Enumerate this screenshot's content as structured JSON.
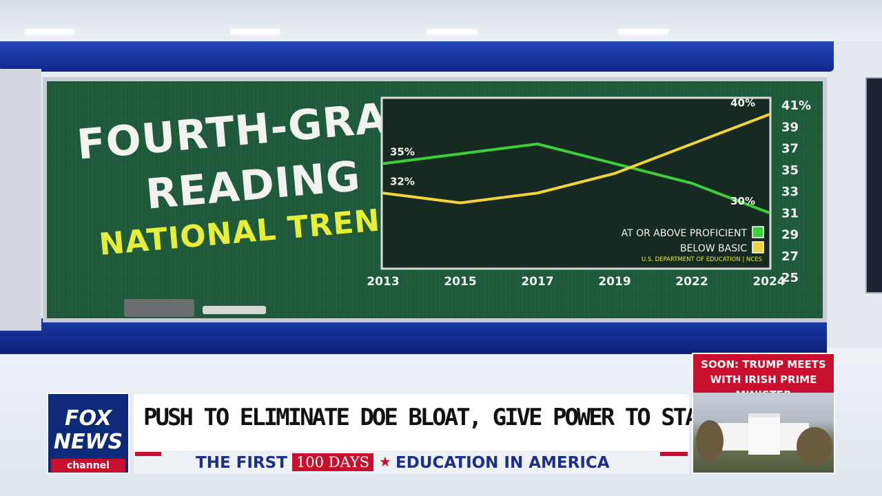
{
  "board": {
    "title_line1": "FOURTH-GRADE",
    "title_line2": "READING",
    "title_line3": "NATIONAL TRENDS"
  },
  "chart_data": {
    "type": "line",
    "title": "FOURTH-GRADE READING NATIONAL TRENDS",
    "categories": [
      "2013",
      "2015",
      "2017",
      "2019",
      "2022",
      "2024"
    ],
    "series": [
      {
        "name": "AT OR ABOVE PROFICIENT",
        "color": "#3ccf3c",
        "values": [
          35,
          36,
          37,
          35,
          33,
          30
        ]
      },
      {
        "name": "BELOW BASIC",
        "color": "#f2d43a",
        "values": [
          32,
          31,
          32,
          34,
          37,
          40
        ]
      }
    ],
    "y_ticks": [
      "41%",
      "39",
      "37",
      "35",
      "33",
      "31",
      "29",
      "27",
      "25"
    ],
    "ylim": [
      25,
      41
    ],
    "axis_side": "right",
    "data_labels": [
      {
        "series": 0,
        "index": 0,
        "text": "35%"
      },
      {
        "series": 0,
        "index": 5,
        "text": "30%"
      },
      {
        "series": 1,
        "index": 0,
        "text": "32%"
      },
      {
        "series": 1,
        "index": 5,
        "text": "40%"
      }
    ],
    "legend_placement": "bottom-right",
    "source": "U.S. DEPARTMENT OF EDUCATION | NCES",
    "grid": false
  },
  "lower_third": {
    "logo_line1": "FOX",
    "logo_line2": "NEWS",
    "logo_line3": "channel",
    "headline": "PUSH TO ELIMINATE DOE BLOAT, GIVE POWER TO STATES",
    "sub_left": "THE FIRST",
    "sub_badge": "100 DAYS",
    "sub_right": "EDUCATION IN AMERICA"
  },
  "promo": {
    "line1": "SOON: TRUMP MEETS",
    "line2": "WITH IRISH PRIME MINISTER"
  },
  "colors": {
    "board_green": "#1f5a3b",
    "accent_red": "#c8102e",
    "fox_blue": "#0d2a78",
    "title_yellow": "#e6ee3a"
  }
}
